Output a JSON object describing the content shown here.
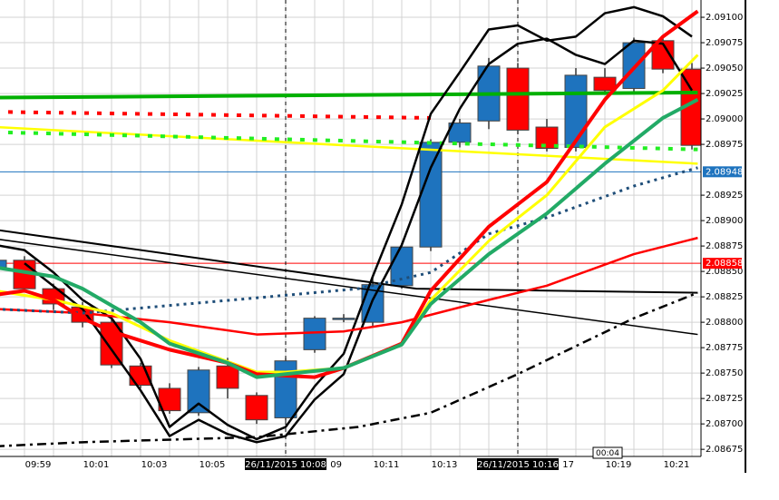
{
  "chart_data": {
    "type": "candlestick",
    "categories": [
      null,
      "09:59",
      null,
      "10:01",
      null,
      "10:03",
      null,
      "10:05",
      null,
      null,
      "26/11/2015 10:08",
      "09",
      null,
      "10:11",
      null,
      "10:13",
      null,
      null,
      "26/11/2015 10:16",
      "17",
      null,
      "10:19",
      null,
      "10:21",
      null
    ],
    "open": [
      2.08854,
      2.08861,
      2.08833,
      2.08815,
      2.088,
      2.08757,
      2.08735,
      2.08711,
      2.08757,
      2.08728,
      2.08706,
      2.08773,
      2.08804,
      2.088,
      2.08836,
      2.08874,
      2.08977,
      2.08998,
      2.0905,
      2.08992,
      2.08972,
      2.09041,
      2.0903,
      2.09077,
      2.09049
    ],
    "high": [
      2.08864,
      2.08865,
      2.08838,
      2.0882,
      2.08804,
      2.0876,
      2.0874,
      2.08756,
      2.08765,
      2.08731,
      2.08765,
      2.08806,
      2.08808,
      2.08845,
      2.08878,
      2.0898,
      2.09,
      2.0906,
      2.09055,
      2.09,
      2.0905,
      2.0905,
      2.0908,
      2.0908,
      2.09055
    ],
    "low": [
      2.0885,
      2.0883,
      2.08812,
      2.08795,
      2.08755,
      2.08735,
      2.0871,
      2.08708,
      2.08725,
      2.087,
      2.08703,
      2.0877,
      2.088,
      2.08795,
      2.08833,
      2.0887,
      2.08972,
      2.0899,
      2.08985,
      2.08968,
      2.08968,
      2.09025,
      2.09025,
      2.09045,
      2.0897
    ],
    "close": [
      2.08861,
      2.08833,
      2.08818,
      2.088,
      2.08758,
      2.08738,
      2.08713,
      2.08753,
      2.08735,
      2.08704,
      2.08762,
      2.08804,
      2.08804,
      2.08837,
      2.08874,
      2.08977,
      2.08996,
      2.09052,
      2.08989,
      2.08971,
      2.09043,
      2.09028,
      2.09075,
      2.09049,
      2.08974
    ],
    "up_color": "#1e73be",
    "down_color": "#ff0000",
    "ylim": [
      2.08668,
      2.09117
    ],
    "yticks": [
      {
        "value": 2.091,
        "label": "2.09100"
      },
      {
        "value": 2.09075,
        "label": "2.09075"
      },
      {
        "value": 2.0905,
        "label": "2.09050"
      },
      {
        "value": 2.09025,
        "label": "2.09025"
      },
      {
        "value": 2.09,
        "label": "2.09000"
      },
      {
        "value": 2.08975,
        "label": "2.08975"
      },
      {
        "value": 2.08925,
        "label": "2.08925"
      },
      {
        "value": 2.089,
        "label": "2.08900"
      },
      {
        "value": 2.08875,
        "label": "2.08875"
      },
      {
        "value": 2.0885,
        "label": "2.08850"
      },
      {
        "value": 2.08825,
        "label": "2.08825"
      },
      {
        "value": 2.088,
        "label": "2.08800"
      },
      {
        "value": 2.08775,
        "label": "2.08775"
      },
      {
        "value": 2.0875,
        "label": "2.08750"
      },
      {
        "value": 2.08725,
        "label": "2.08725"
      },
      {
        "value": 2.087,
        "label": "2.08700"
      },
      {
        "value": 2.08675,
        "label": "2.08675"
      }
    ],
    "grid": true,
    "lines": [
      {
        "color": "#00b000",
        "width": 4,
        "x": [
          0,
          24.2
        ],
        "values": [
          2.09021,
          2.09026
        ]
      },
      {
        "color": "#ffff00",
        "width": 2.5,
        "x": [
          0,
          24.2
        ],
        "values": [
          2.08992,
          2.08956
        ]
      },
      {
        "color": "#ff0000",
        "width": 4,
        "dash": "5,9",
        "x": [
          0,
          15
        ],
        "values": [
          2.09007,
          2.09001
        ]
      },
      {
        "color": "#22ee22",
        "width": 4,
        "dash": "5,9",
        "x": [
          0,
          24.2
        ],
        "values": [
          2.08987,
          2.0897
        ]
      },
      {
        "color": "#000000",
        "width": 1.5,
        "x": [
          0,
          24.2
        ],
        "values": [
          2.08882,
          2.08788
        ]
      },
      {
        "color": "#000000",
        "width": 2,
        "x": [
          0,
          14.5,
          24.2
        ],
        "values": [
          2.08891,
          2.08833,
          2.08829
        ]
      },
      {
        "color": "#000000",
        "width": 2.5,
        "x": [
          0,
          1,
          2,
          3,
          4,
          5,
          6,
          7,
          8,
          9,
          10,
          11,
          12,
          13,
          14,
          15,
          16,
          17,
          18,
          19,
          20,
          21,
          22,
          23,
          24
        ],
        "values": [
          2.08876,
          2.08871,
          2.08849,
          2.08822,
          2.08804,
          2.08764,
          2.08697,
          2.0872,
          2.08699,
          2.08685,
          2.08697,
          2.08737,
          2.08769,
          2.08845,
          2.08916,
          2.09005,
          2.09046,
          2.09088,
          2.09092,
          2.09077,
          2.09081,
          2.09104,
          2.0911,
          2.09101,
          2.09081
        ]
      },
      {
        "color": "#000000",
        "width": 2.5,
        "x": [
          1,
          3,
          5,
          6,
          7,
          8,
          9,
          10,
          11,
          12,
          13,
          14,
          15,
          16,
          17,
          18,
          19,
          20,
          21,
          22,
          23,
          24
        ],
        "values": [
          2.08858,
          2.08813,
          2.08733,
          2.08688,
          2.08704,
          2.0869,
          2.08682,
          2.08688,
          2.08724,
          2.08749,
          2.08822,
          2.08876,
          2.08952,
          2.0901,
          2.09054,
          2.09074,
          2.09079,
          2.09063,
          2.09054,
          2.09077,
          2.09074,
          2.09028
        ]
      },
      {
        "color": "#ff0000",
        "width": 2.5,
        "x": [
          0,
          3,
          6,
          9,
          12,
          14,
          17,
          19,
          22,
          24.2
        ],
        "values": [
          2.08813,
          2.08809,
          2.088,
          2.08788,
          2.08791,
          2.088,
          2.08822,
          2.08836,
          2.08867,
          2.08883
        ]
      },
      {
        "color": "#1f4e79",
        "width": 3,
        "dash": "3,5",
        "x": [
          0,
          3,
          9,
          12.5,
          15,
          17,
          19,
          22,
          24.2
        ],
        "values": [
          2.08813,
          2.08809,
          2.08824,
          2.08833,
          2.08849,
          2.08887,
          2.08903,
          2.08934,
          2.08952
        ]
      },
      {
        "color": "#000000",
        "width": 2.5,
        "dash": "10,5,3,5",
        "x": [
          0,
          3,
          9,
          12.5,
          15,
          18,
          22,
          24.2
        ],
        "values": [
          2.08678,
          2.08682,
          2.08687,
          2.08697,
          2.08711,
          2.08749,
          2.08804,
          2.08829
        ]
      },
      {
        "color": "#ffff00",
        "width": 3,
        "x": [
          0,
          2,
          4,
          6,
          9,
          10,
          12,
          14,
          15,
          17,
          19,
          21,
          23,
          24.2
        ],
        "values": [
          2.08831,
          2.08822,
          2.08809,
          2.08782,
          2.08751,
          2.08751,
          2.08755,
          2.08779,
          2.08822,
          2.0888,
          2.08925,
          2.08992,
          2.09028,
          2.09063
        ]
      },
      {
        "color": "#ff0000",
        "width": 4,
        "x": [
          0,
          1,
          2,
          3,
          4,
          6,
          8,
          9,
          11,
          12,
          14,
          15,
          17,
          19,
          21,
          23,
          24.2
        ],
        "values": [
          2.08827,
          2.08831,
          2.08822,
          2.08804,
          2.08791,
          2.08773,
          2.0876,
          2.08749,
          2.08746,
          2.08755,
          2.08779,
          2.08831,
          2.08894,
          2.08938,
          2.09019,
          2.09081,
          2.09106
        ]
      },
      {
        "color": "#22aa66",
        "width": 4,
        "x": [
          0,
          2,
          3,
          5,
          6,
          8,
          9,
          10,
          12,
          14,
          15,
          17,
          19,
          21,
          23,
          24.2
        ],
        "values": [
          2.08854,
          2.08845,
          2.08833,
          2.088,
          2.08779,
          2.0876,
          2.08746,
          2.08749,
          2.08755,
          2.08778,
          2.08818,
          2.08867,
          2.08907,
          2.08956,
          2.09001,
          2.09019
        ]
      }
    ],
    "hlines": [
      {
        "value": 2.08948,
        "color": "#1e73be"
      },
      {
        "value": 2.08858,
        "color": "#ff0000"
      }
    ],
    "vlines": [
      10,
      18
    ],
    "timer": "00:04"
  }
}
